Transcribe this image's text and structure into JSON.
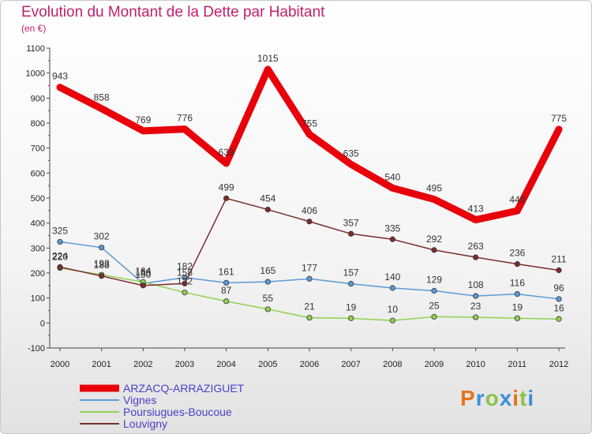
{
  "header": {
    "title": "Evolution du Montant de la Dette par Habitant",
    "subtitle": "(en €)"
  },
  "logo": {
    "text": "Proxiti",
    "colors": [
      "#e8731b",
      "#3a8fd6",
      "#8bc34a",
      "#3a8fd6",
      "#e8731b",
      "#8bc34a",
      "#3a8fd6"
    ]
  },
  "chart_data": {
    "type": "line",
    "x": [
      "2000",
      "2001",
      "2002",
      "2003",
      "2004",
      "2005",
      "2006",
      "2007",
      "2008",
      "2009",
      "2010",
      "2011",
      "2012"
    ],
    "ylim": [
      -100,
      1100
    ],
    "yticks": [
      -100,
      0,
      100,
      200,
      300,
      400,
      500,
      600,
      700,
      800,
      900,
      1000,
      1100
    ],
    "grid": false,
    "legend_position": "bottom-left",
    "series": [
      {
        "name": "ARZACQ-ARRAZIGUET",
        "color": "#e8000b",
        "emphasis": true,
        "values": [
          943,
          858,
          769,
          776,
          639,
          1015,
          755,
          635,
          540,
          495,
          413,
          449,
          775
        ]
      },
      {
        "name": "Vignes",
        "color": "#5b9bd5",
        "emphasis": false,
        "values": [
          325,
          302,
          158,
          182,
          161,
          165,
          177,
          157,
          140,
          129,
          108,
          116,
          96
        ]
      },
      {
        "name": "Poursiugues-Boucoue",
        "color": "#92d050",
        "emphasis": false,
        "values": [
          220,
          193,
          164,
          122,
          87,
          55,
          21,
          19,
          10,
          25,
          23,
          19,
          16
        ]
      },
      {
        "name": "Louvigny",
        "color": "#7b2c2c",
        "emphasis": false,
        "values": [
          224,
          188,
          150,
          158,
          499,
          454,
          406,
          357,
          335,
          292,
          263,
          236,
          211
        ]
      }
    ]
  }
}
